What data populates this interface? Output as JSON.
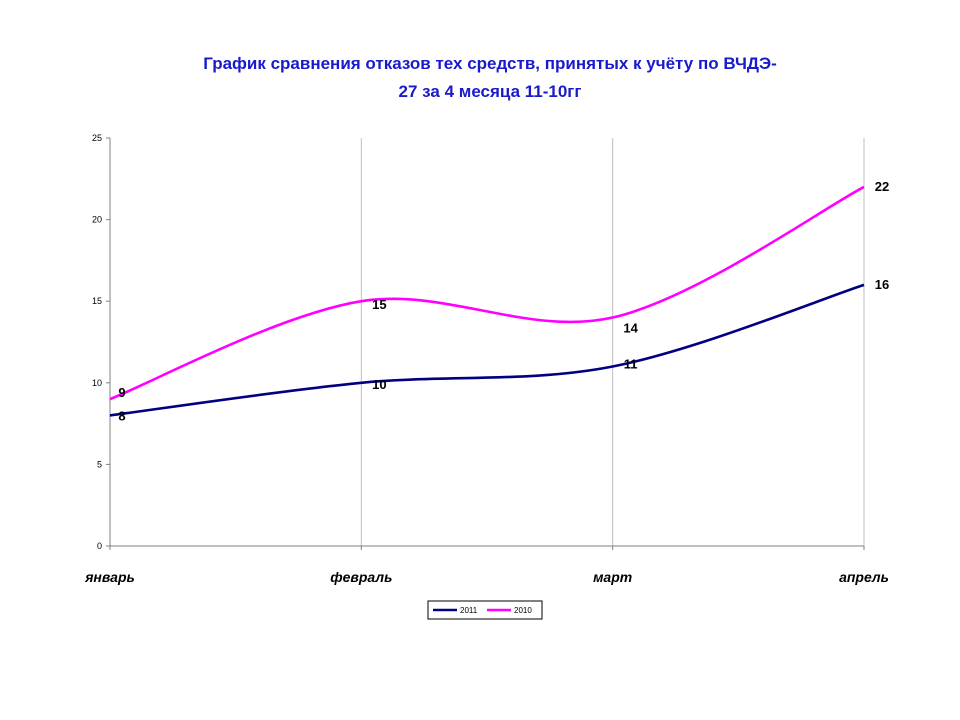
{
  "title": {
    "line1": "График сравнения отказов тех средств, принятых к учёту по ВЧДЭ-",
    "line2": "27 за 4 месяца 11-10гг"
  },
  "chart_data": {
    "type": "line",
    "categories": [
      "январь",
      "февраль",
      "март",
      "апрель"
    ],
    "series": [
      {
        "name": "2011",
        "values": [
          8,
          10,
          11,
          16
        ],
        "color": "#000080"
      },
      {
        "name": "2010",
        "values": [
          9,
          15,
          14,
          22
        ],
        "color": "#ff00ff"
      }
    ],
    "ylim": [
      0,
      25
    ],
    "yticks": [
      "0",
      "5",
      "10",
      "15",
      "20",
      "25"
    ],
    "grid": "vertical at categories",
    "smooth": true,
    "legend_position": "bottom-center"
  }
}
